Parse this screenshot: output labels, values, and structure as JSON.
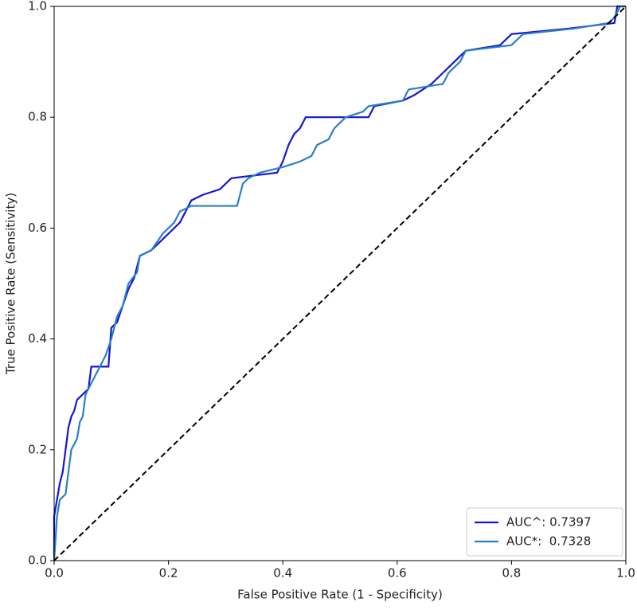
{
  "chart_data": {
    "type": "line",
    "xlabel": "False Positive Rate (1 - Specificity)",
    "ylabel": "True Positive Rate (Sensitivity)",
    "xlim": [
      0,
      1
    ],
    "ylim": [
      0,
      1
    ],
    "xticks": [
      {
        "value": 0,
        "label": "0.0"
      },
      0.2,
      0.4,
      0.6,
      0.8,
      {
        "value": 1,
        "label": "1.0"
      }
    ],
    "yticks": [
      {
        "value": 0,
        "label": "0.0"
      },
      0.2,
      0.4,
      0.6,
      0.8,
      {
        "value": 1,
        "label": "1.0"
      }
    ],
    "legend": "lower right",
    "series": [
      {
        "name": "AUC^: 0.7397",
        "color": "#1515d6",
        "x": [
          0,
          0,
          0.005,
          0.01,
          0.015,
          0.02,
          0.025,
          0.03,
          0.035,
          0.04,
          0.05,
          0.06,
          0.065,
          0.095,
          0.1,
          0.11,
          0.12,
          0.13,
          0.14,
          0.15,
          0.17,
          0.19,
          0.2,
          0.22,
          0.24,
          0.26,
          0.29,
          0.31,
          0.39,
          0.4,
          0.41,
          0.42,
          0.43,
          0.44,
          0.55,
          0.56,
          0.61,
          0.63,
          0.66,
          0.68,
          0.7,
          0.72,
          0.78,
          0.8,
          0.9,
          0.98,
          0.985,
          1
        ],
        "values": [
          0,
          0.08,
          0.11,
          0.14,
          0.16,
          0.2,
          0.24,
          0.26,
          0.27,
          0.29,
          0.3,
          0.31,
          0.35,
          0.35,
          0.42,
          0.43,
          0.46,
          0.49,
          0.51,
          0.55,
          0.56,
          0.58,
          0.59,
          0.61,
          0.65,
          0.66,
          0.67,
          0.69,
          0.7,
          0.72,
          0.75,
          0.77,
          0.78,
          0.8,
          0.8,
          0.82,
          0.83,
          0.84,
          0.86,
          0.88,
          0.9,
          0.92,
          0.93,
          0.95,
          0.96,
          0.97,
          1,
          1
        ]
      },
      {
        "name": "AUC*:  0.7328",
        "color": "#2b7fc4",
        "x": [
          0,
          0.005,
          0.01,
          0.02,
          0.025,
          0.03,
          0.04,
          0.045,
          0.05,
          0.055,
          0.06,
          0.07,
          0.08,
          0.09,
          0.1,
          0.11,
          0.12,
          0.13,
          0.145,
          0.15,
          0.17,
          0.19,
          0.21,
          0.22,
          0.24,
          0.32,
          0.33,
          0.34,
          0.36,
          0.4,
          0.43,
          0.45,
          0.46,
          0.48,
          0.49,
          0.5,
          0.51,
          0.54,
          0.55,
          0.61,
          0.62,
          0.68,
          0.69,
          0.71,
          0.72,
          0.8,
          0.82,
          0.91,
          0.97,
          0.98,
          0.99,
          1
        ],
        "values": [
          0,
          0.08,
          0.11,
          0.12,
          0.16,
          0.2,
          0.22,
          0.25,
          0.26,
          0.3,
          0.31,
          0.33,
          0.35,
          0.37,
          0.4,
          0.44,
          0.46,
          0.5,
          0.52,
          0.55,
          0.56,
          0.59,
          0.61,
          0.63,
          0.64,
          0.64,
          0.68,
          0.69,
          0.7,
          0.71,
          0.72,
          0.73,
          0.75,
          0.76,
          0.78,
          0.79,
          0.8,
          0.81,
          0.82,
          0.83,
          0.85,
          0.86,
          0.88,
          0.9,
          0.92,
          0.93,
          0.95,
          0.96,
          0.97,
          0.98,
          1,
          1
        ]
      }
    ],
    "diagonal": {
      "x": [
        0,
        1
      ],
      "values": [
        0,
        1
      ],
      "color": "#000000"
    }
  }
}
